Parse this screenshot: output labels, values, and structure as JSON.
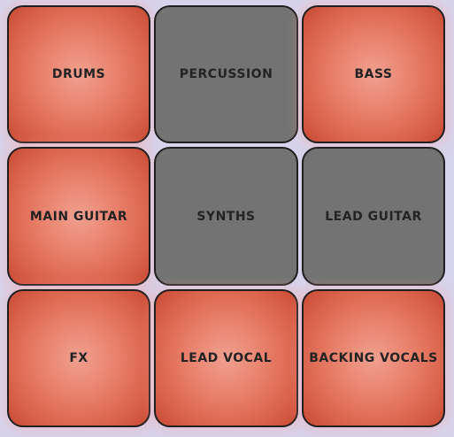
{
  "pads": [
    {
      "label": "DRUMS",
      "state": "on"
    },
    {
      "label": "PERCUSSION",
      "state": "off"
    },
    {
      "label": "BASS",
      "state": "on"
    },
    {
      "label": "MAIN GUITAR",
      "state": "on"
    },
    {
      "label": "SYNTHS",
      "state": "off"
    },
    {
      "label": "LEAD GUITAR",
      "state": "off"
    },
    {
      "label": "FX",
      "state": "on"
    },
    {
      "label": "LEAD VOCAL",
      "state": "on"
    },
    {
      "label": "BACKING VOCALS",
      "state": "on"
    }
  ],
  "colors": {
    "pad_on": "#e8806b",
    "pad_off": "#737373",
    "border": "#1f1f1f",
    "label": "#232323",
    "background": "#d6d4ec"
  }
}
